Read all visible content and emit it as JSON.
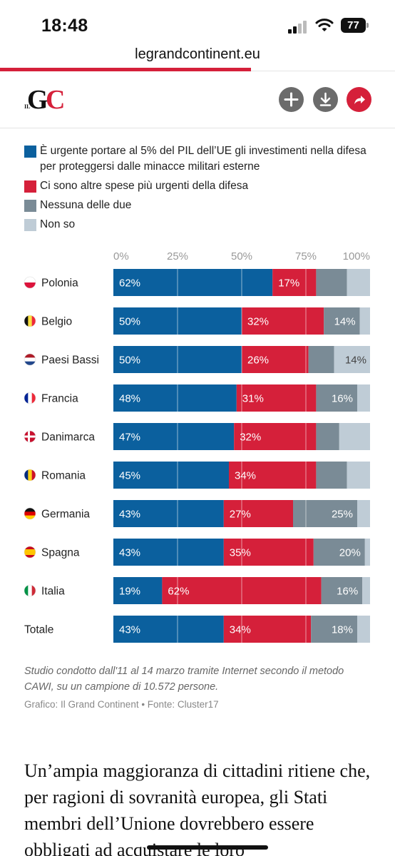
{
  "status_bar": {
    "time": "18:48",
    "battery": "77"
  },
  "browser": {
    "url": "legrandcontinent.eu",
    "load_progress": 0.635
  },
  "site": {
    "logo_il": "IL",
    "logo_g": "G",
    "logo_c": "C",
    "buttons": [
      "add-icon",
      "download-icon",
      "share-icon"
    ]
  },
  "colors": {
    "accent": "#d5203a",
    "urgent_defense": "#0b609e",
    "other_priorities": "#d5203a",
    "neither": "#7a8b96",
    "dont_know": "#bfccd6"
  },
  "chart_data": {
    "type": "bar",
    "orientation": "horizontal",
    "stacked": true,
    "x_ticks": [
      "0%",
      "25%",
      "50%",
      "75%",
      "100%"
    ],
    "xlim": [
      0,
      100
    ],
    "grid": true,
    "legend_position": "top",
    "series": [
      {
        "name": "È urgente portare al 5% del PIL dell’UE gli investimenti nella difesa per proteggersi dalle minacce militari esterne",
        "color": "#0b609e"
      },
      {
        "name": "Ci sono altre spese più urgenti della difesa",
        "color": "#d5203a"
      },
      {
        "name": "Nessuna delle due",
        "color": "#7a8b96"
      },
      {
        "name": "Non so",
        "color": "#bfccd6"
      }
    ],
    "rows": [
      {
        "label": "Polonia",
        "flag": "poland-flag-icon",
        "values": [
          62,
          17,
          12,
          9
        ],
        "labels": [
          "62%",
          "17%",
          "",
          ""
        ]
      },
      {
        "label": "Belgio",
        "flag": "belgium-flag-icon",
        "values": [
          50,
          32,
          14,
          4
        ],
        "labels": [
          "50%",
          "32%",
          "14%",
          ""
        ]
      },
      {
        "label": "Paesi Bassi",
        "flag": "netherlands-flag-icon",
        "values": [
          50,
          26,
          10,
          14
        ],
        "labels": [
          "50%",
          "26%",
          "",
          "14%"
        ]
      },
      {
        "label": "Francia",
        "flag": "france-flag-icon",
        "values": [
          48,
          31,
          16,
          5
        ],
        "labels": [
          "48%",
          "31%",
          "16%",
          ""
        ]
      },
      {
        "label": "Danimarca",
        "flag": "denmark-flag-icon",
        "values": [
          47,
          32,
          9,
          12
        ],
        "labels": [
          "47%",
          "32%",
          "",
          ""
        ]
      },
      {
        "label": "Romania",
        "flag": "romania-flag-icon",
        "values": [
          45,
          34,
          12,
          9
        ],
        "labels": [
          "45%",
          "34%",
          "",
          ""
        ]
      },
      {
        "label": "Germania",
        "flag": "germany-flag-icon",
        "values": [
          43,
          27,
          25,
          5
        ],
        "labels": [
          "43%",
          "27%",
          "25%",
          ""
        ]
      },
      {
        "label": "Spagna",
        "flag": "spain-flag-icon",
        "values": [
          43,
          35,
          20,
          2
        ],
        "labels": [
          "43%",
          "35%",
          "20%",
          ""
        ]
      },
      {
        "label": "Italia",
        "flag": "italy-flag-icon",
        "values": [
          19,
          62,
          16,
          3
        ],
        "labels": [
          "19%",
          "62%",
          "16%",
          ""
        ]
      },
      {
        "label": "Totale",
        "flag": "",
        "values": [
          43,
          34,
          18,
          5
        ],
        "labels": [
          "43%",
          "34%",
          "18%",
          ""
        ]
      }
    ]
  },
  "caption": "Studio condotto dall'11 al 14 marzo tramite Internet secondo il metodo CAWI, su un campione di 10.572 persone.",
  "source": "Grafico: Il Grand Continent  • Fonte: Cluster17",
  "article": {
    "text": "Un’ampia maggioranza di cittadini ritiene che, per ragioni di sovranità europea, gli Stati membri dell’Unione dovrebbero essere obbligati ad acquistare le loro"
  }
}
